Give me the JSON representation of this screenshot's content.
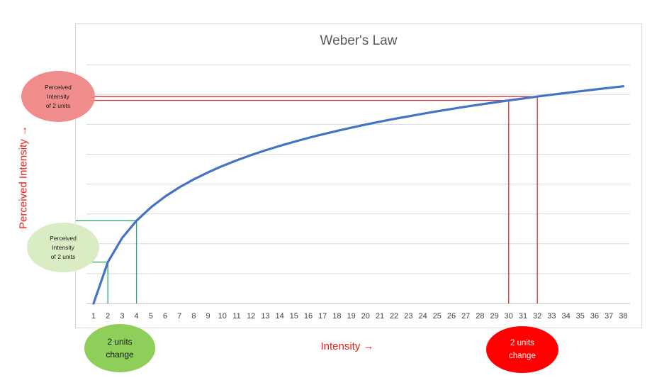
{
  "chart_data": {
    "type": "line",
    "title": "Weber's Law",
    "xlabel": "Intensity →",
    "ylabel": "Perceived Intensity →",
    "categories": [
      1,
      2,
      3,
      4,
      5,
      6,
      7,
      8,
      9,
      10,
      11,
      12,
      13,
      14,
      15,
      16,
      17,
      18,
      19,
      20,
      21,
      22,
      23,
      24,
      25,
      26,
      27,
      28,
      29,
      30,
      31,
      32,
      33,
      34,
      35,
      36,
      37,
      38
    ],
    "series": [
      {
        "values": [
          0.0,
          0.693,
          1.099,
          1.386,
          1.609,
          1.792,
          1.946,
          2.079,
          2.197,
          2.303,
          2.398,
          2.485,
          2.565,
          2.639,
          2.708,
          2.773,
          2.833,
          2.89,
          2.944,
          2.996,
          3.045,
          3.091,
          3.135,
          3.178,
          3.219,
          3.258,
          3.296,
          3.332,
          3.367,
          3.401,
          3.434,
          3.466,
          3.497,
          3.526,
          3.555,
          3.584,
          3.611,
          3.638
        ],
        "color": "#4472c4"
      }
    ],
    "ylim": [
      0,
      4.0
    ],
    "grid": true,
    "y_tick_labels_shown": false,
    "annotations": {
      "green_x": [
        2,
        4
      ],
      "red_x": [
        30,
        32
      ],
      "green_color": "#2da66a",
      "red_color": "#e03030"
    }
  },
  "bubbles": {
    "top_left": [
      "Perceived",
      "Intensity",
      "of 2 units"
    ],
    "middle_left": [
      "Perceived",
      "Intensity",
      "of 2 units"
    ],
    "bottom_green": [
      "2 units",
      "change"
    ],
    "bottom_red": [
      "2 units",
      "change"
    ]
  }
}
